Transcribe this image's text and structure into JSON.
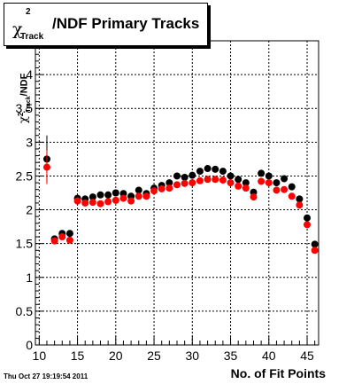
{
  "title": {
    "chi": "χ",
    "sup": "2",
    "sub": "Track",
    "text": "/NDF Primary Tracks"
  },
  "ylabel": {
    "chi": "χ",
    "sup": "2",
    "sub": "Track",
    "text": "/NDF"
  },
  "xlabel": "No. of Fit Points",
  "timestamp": "Thu Oct 27 19:19:54 2011",
  "chart_data": {
    "type": "scatter",
    "title": "χ2Track/NDF Primary Tracks",
    "xlabel": "No. of Fit Points",
    "ylabel": "χ2Track/NDF",
    "xlim": [
      9.5,
      46.5
    ],
    "ylim": [
      0,
      4.5
    ],
    "grid": true,
    "x_ticks": [
      10,
      15,
      20,
      25,
      30,
      35,
      40,
      45
    ],
    "y_ticks": [
      0,
      0.5,
      1,
      1.5,
      2,
      2.5,
      3,
      3.5,
      4
    ],
    "x_tick_labels": [
      "10",
      "15",
      "20",
      "25",
      "30",
      "35",
      "40",
      "45"
    ],
    "y_tick_labels": [
      "0",
      "0.5",
      "1",
      "1.5",
      "2",
      "2.5",
      "3",
      "3.5",
      "4"
    ],
    "series": [
      {
        "color": "#000000",
        "x": [
          11,
          12,
          13,
          14,
          15,
          16,
          17,
          18,
          19,
          20,
          21,
          22,
          23,
          24,
          25,
          26,
          27,
          28,
          29,
          30,
          31,
          32,
          33,
          34,
          35,
          36,
          37,
          38,
          39,
          40,
          41,
          42,
          43,
          44,
          45,
          46
        ],
        "y": [
          2.75,
          1.57,
          1.65,
          1.65,
          2.17,
          2.16,
          2.19,
          2.22,
          2.22,
          2.25,
          2.24,
          2.2,
          2.29,
          2.24,
          2.32,
          2.36,
          2.4,
          2.5,
          2.48,
          2.51,
          2.57,
          2.61,
          2.6,
          2.57,
          2.5,
          2.45,
          2.4,
          2.26,
          2.54,
          2.5,
          2.4,
          2.46,
          2.34,
          2.16,
          1.88,
          1.49
        ],
        "yerr": [
          0.35,
          0.04,
          0.02,
          0.02,
          0.02,
          0.01,
          0.01,
          0.01,
          0.01,
          0.01,
          0.01,
          0.01,
          0.01,
          0.01,
          0.01,
          0.01,
          0.01,
          0.01,
          0.01,
          0.01,
          0.01,
          0.01,
          0.01,
          0.01,
          0.01,
          0.01,
          0.01,
          0.01,
          0.01,
          0.01,
          0.01,
          0.01,
          0.01,
          0.01,
          0.02,
          0.03
        ]
      },
      {
        "color": "#ff0000",
        "x": [
          11,
          12,
          13,
          14,
          15,
          16,
          17,
          18,
          19,
          20,
          21,
          22,
          23,
          24,
          25,
          26,
          27,
          28,
          29,
          30,
          31,
          32,
          33,
          34,
          35,
          36,
          37,
          38,
          39,
          40,
          41,
          42,
          43,
          44,
          45,
          46
        ],
        "y": [
          2.63,
          1.54,
          1.6,
          1.55,
          2.13,
          2.1,
          2.11,
          2.09,
          2.12,
          2.14,
          2.17,
          2.13,
          2.2,
          2.2,
          2.28,
          2.31,
          2.32,
          2.37,
          2.39,
          2.4,
          2.43,
          2.45,
          2.45,
          2.44,
          2.4,
          2.35,
          2.32,
          2.19,
          2.42,
          2.4,
          2.29,
          2.3,
          2.2,
          2.07,
          1.78,
          1.4
        ],
        "yerr": [
          0.25,
          0.04,
          0.02,
          0.02,
          0.02,
          0.01,
          0.01,
          0.01,
          0.01,
          0.01,
          0.01,
          0.01,
          0.01,
          0.01,
          0.01,
          0.01,
          0.01,
          0.01,
          0.01,
          0.01,
          0.01,
          0.01,
          0.01,
          0.01,
          0.01,
          0.01,
          0.01,
          0.01,
          0.01,
          0.01,
          0.01,
          0.01,
          0.01,
          0.01,
          0.02,
          0.03
        ]
      }
    ]
  }
}
